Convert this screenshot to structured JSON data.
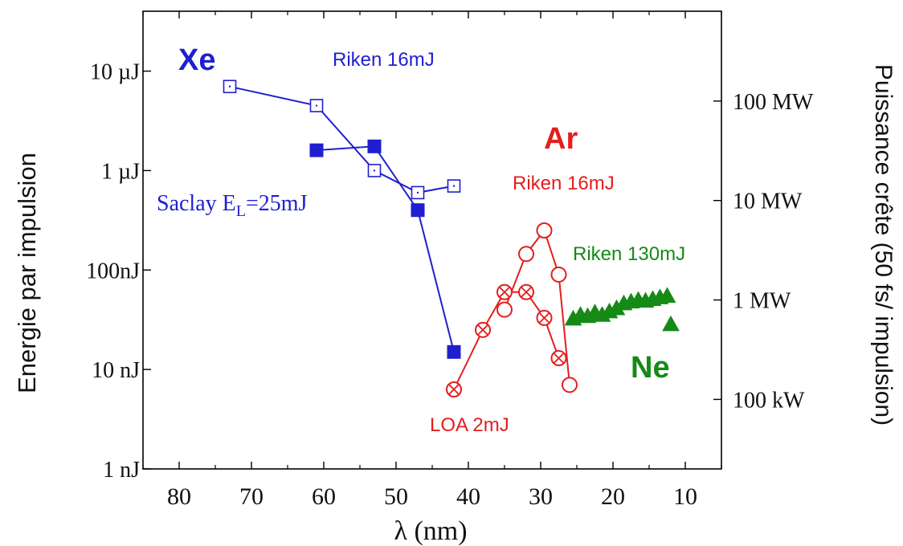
{
  "chart_data": {
    "type": "line",
    "x_axis": {
      "label": "λ (nm)",
      "reversed": true,
      "range": [
        85,
        5
      ],
      "ticks": [
        80,
        70,
        60,
        50,
        40,
        30,
        20,
        10
      ],
      "tick_labels": [
        "80",
        "70",
        "60",
        "50",
        "40",
        "30",
        "20",
        "10"
      ]
    },
    "y_axis_left": {
      "label": "Energie par impulsion",
      "scale": "log",
      "unit": "J",
      "range": [
        1e-09,
        4e-05
      ],
      "ticks": [
        1e-09,
        1e-08,
        1e-07,
        1e-06,
        1e-05
      ],
      "tick_labels": [
        "1 nJ",
        "10 nJ",
        "100nJ",
        "1 µJ",
        "10 µJ"
      ]
    },
    "y_axis_right": {
      "label": "Puissance crête (50 fs/ impulsion)",
      "scale": "log",
      "unit": "W",
      "ticks": [
        100000.0,
        1000000.0,
        10000000.0,
        100000000.0
      ],
      "tick_labels": [
        "100 kW",
        "1 MW",
        "10 MW",
        "100 MW"
      ]
    },
    "grid": false,
    "legend": "none",
    "series": [
      {
        "name": "Riken 16mJ",
        "gas": "Xe",
        "color": "#1f1fcf",
        "marker": "open-square-dot",
        "connected": true,
        "x": [
          73,
          61,
          53,
          47,
          42
        ],
        "y": [
          7e-06,
          4.5e-06,
          1e-06,
          6e-07,
          7e-07
        ]
      },
      {
        "name": "Saclay E_L=25mJ",
        "gas": "Xe",
        "color": "#1f1fcf",
        "marker": "filled-square",
        "connected": true,
        "x": [
          61,
          53,
          47,
          42
        ],
        "y": [
          1.6e-06,
          1.75e-06,
          4e-07,
          1.5e-08
        ]
      },
      {
        "name": "Riken 16mJ",
        "gas": "Ar",
        "color": "#e41e1e",
        "marker": "open-circle",
        "connected": true,
        "x": [
          35,
          32,
          29.5,
          27.5,
          26
        ],
        "y": [
          4e-08,
          1.45e-07,
          2.5e-07,
          9e-08,
          7e-09
        ]
      },
      {
        "name": "LOA 2mJ",
        "gas": "Ar",
        "color": "#e41e1e",
        "marker": "circle-cross",
        "connected": true,
        "x": [
          42,
          38,
          35,
          32,
          29.5,
          27.5
        ],
        "y": [
          6.3e-09,
          2.5e-08,
          6e-08,
          6e-08,
          3.3e-08,
          1.3e-08
        ]
      },
      {
        "name": "Riken 130mJ",
        "gas": "Ne",
        "color": "#158a15",
        "marker": "filled-triangle",
        "connected": false,
        "x": [
          25.5,
          24.5,
          23.5,
          22.5,
          21.5,
          20.5,
          19.5,
          18.5,
          17.5,
          16.5,
          15.5,
          14.5,
          13.5,
          12.5,
          12
        ],
        "y": [
          3.3e-08,
          3.6e-08,
          3.5e-08,
          3.8e-08,
          3.6e-08,
          3.9e-08,
          4.2e-08,
          4.7e-08,
          4.9e-08,
          5.1e-08,
          5e-08,
          5.2e-08,
          5.4e-08,
          5.6e-08,
          2.9e-08
        ]
      }
    ],
    "annotations": [
      {
        "text": "Xe",
        "color": "#1f1fcf"
      },
      {
        "text": "Riken 16mJ",
        "color": "#1f1fcf"
      },
      {
        "text": "Saclay E",
        "sub": "L",
        "after": "=25mJ",
        "color": "#1f1fcf"
      },
      {
        "text": "Ar",
        "color": "#e41e1e"
      },
      {
        "text": "Riken 16mJ",
        "color": "#e41e1e"
      },
      {
        "text": "LOA 2mJ",
        "color": "#e41e1e"
      },
      {
        "text": "Riken 130mJ",
        "color": "#158a15"
      },
      {
        "text": "Ne",
        "color": "#158a15"
      }
    ]
  }
}
